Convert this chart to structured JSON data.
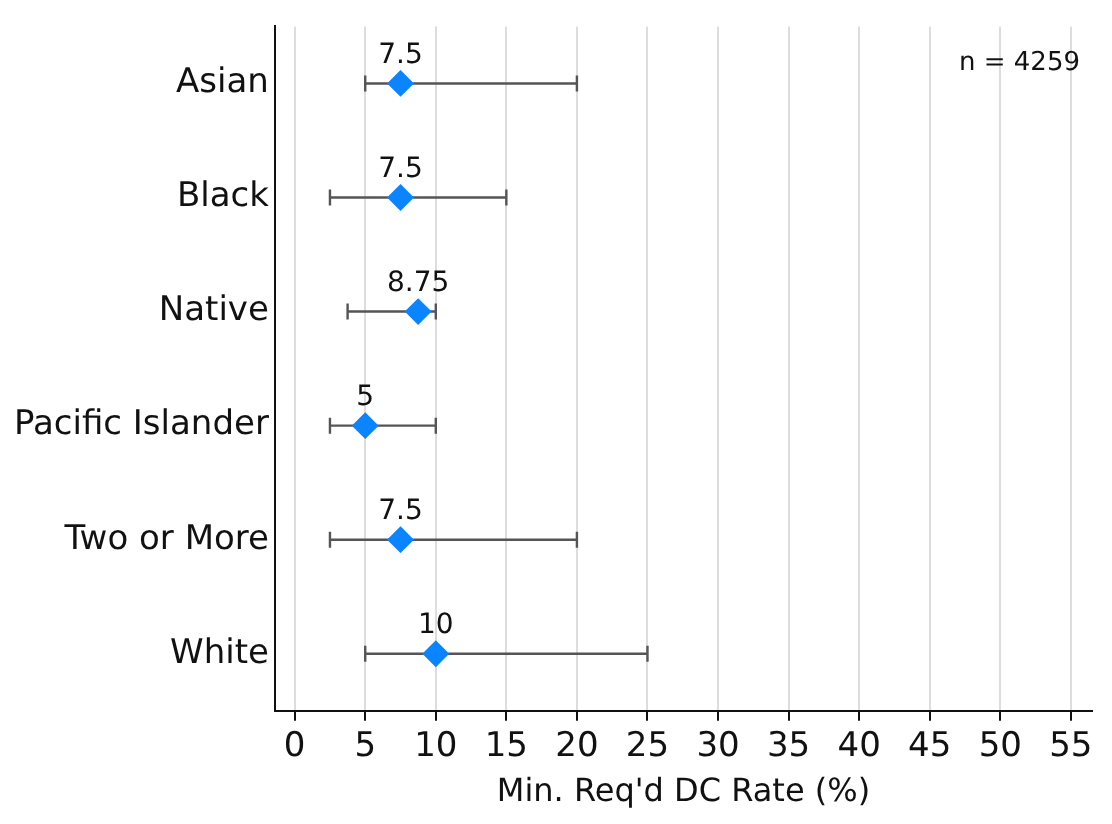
{
  "chart_data": {
    "type": "scatter",
    "orientation": "horizontal",
    "xlabel": "Min. Req'd DC Rate (%)",
    "categories": [
      "Asian",
      "Black",
      "Native",
      "Pacific Islander",
      "Two or More",
      "White"
    ],
    "values": [
      7.5,
      7.5,
      8.75,
      5,
      7.5,
      10
    ],
    "errors": [
      [
        5,
        20
      ],
      [
        2.5,
        15
      ],
      [
        3.75,
        10
      ],
      [
        2.5,
        10
      ],
      [
        2.5,
        20
      ],
      [
        5,
        25
      ]
    ],
    "color": "#0a84ff",
    "marker": "diamond",
    "data_labels": true,
    "xlim": [
      -1.4,
      56.5
    ],
    "xticks": [
      0,
      5,
      10,
      15,
      20,
      25,
      30,
      35,
      40,
      45,
      50,
      55
    ],
    "grid": "x",
    "annotations": [
      "n = 4259"
    ]
  }
}
